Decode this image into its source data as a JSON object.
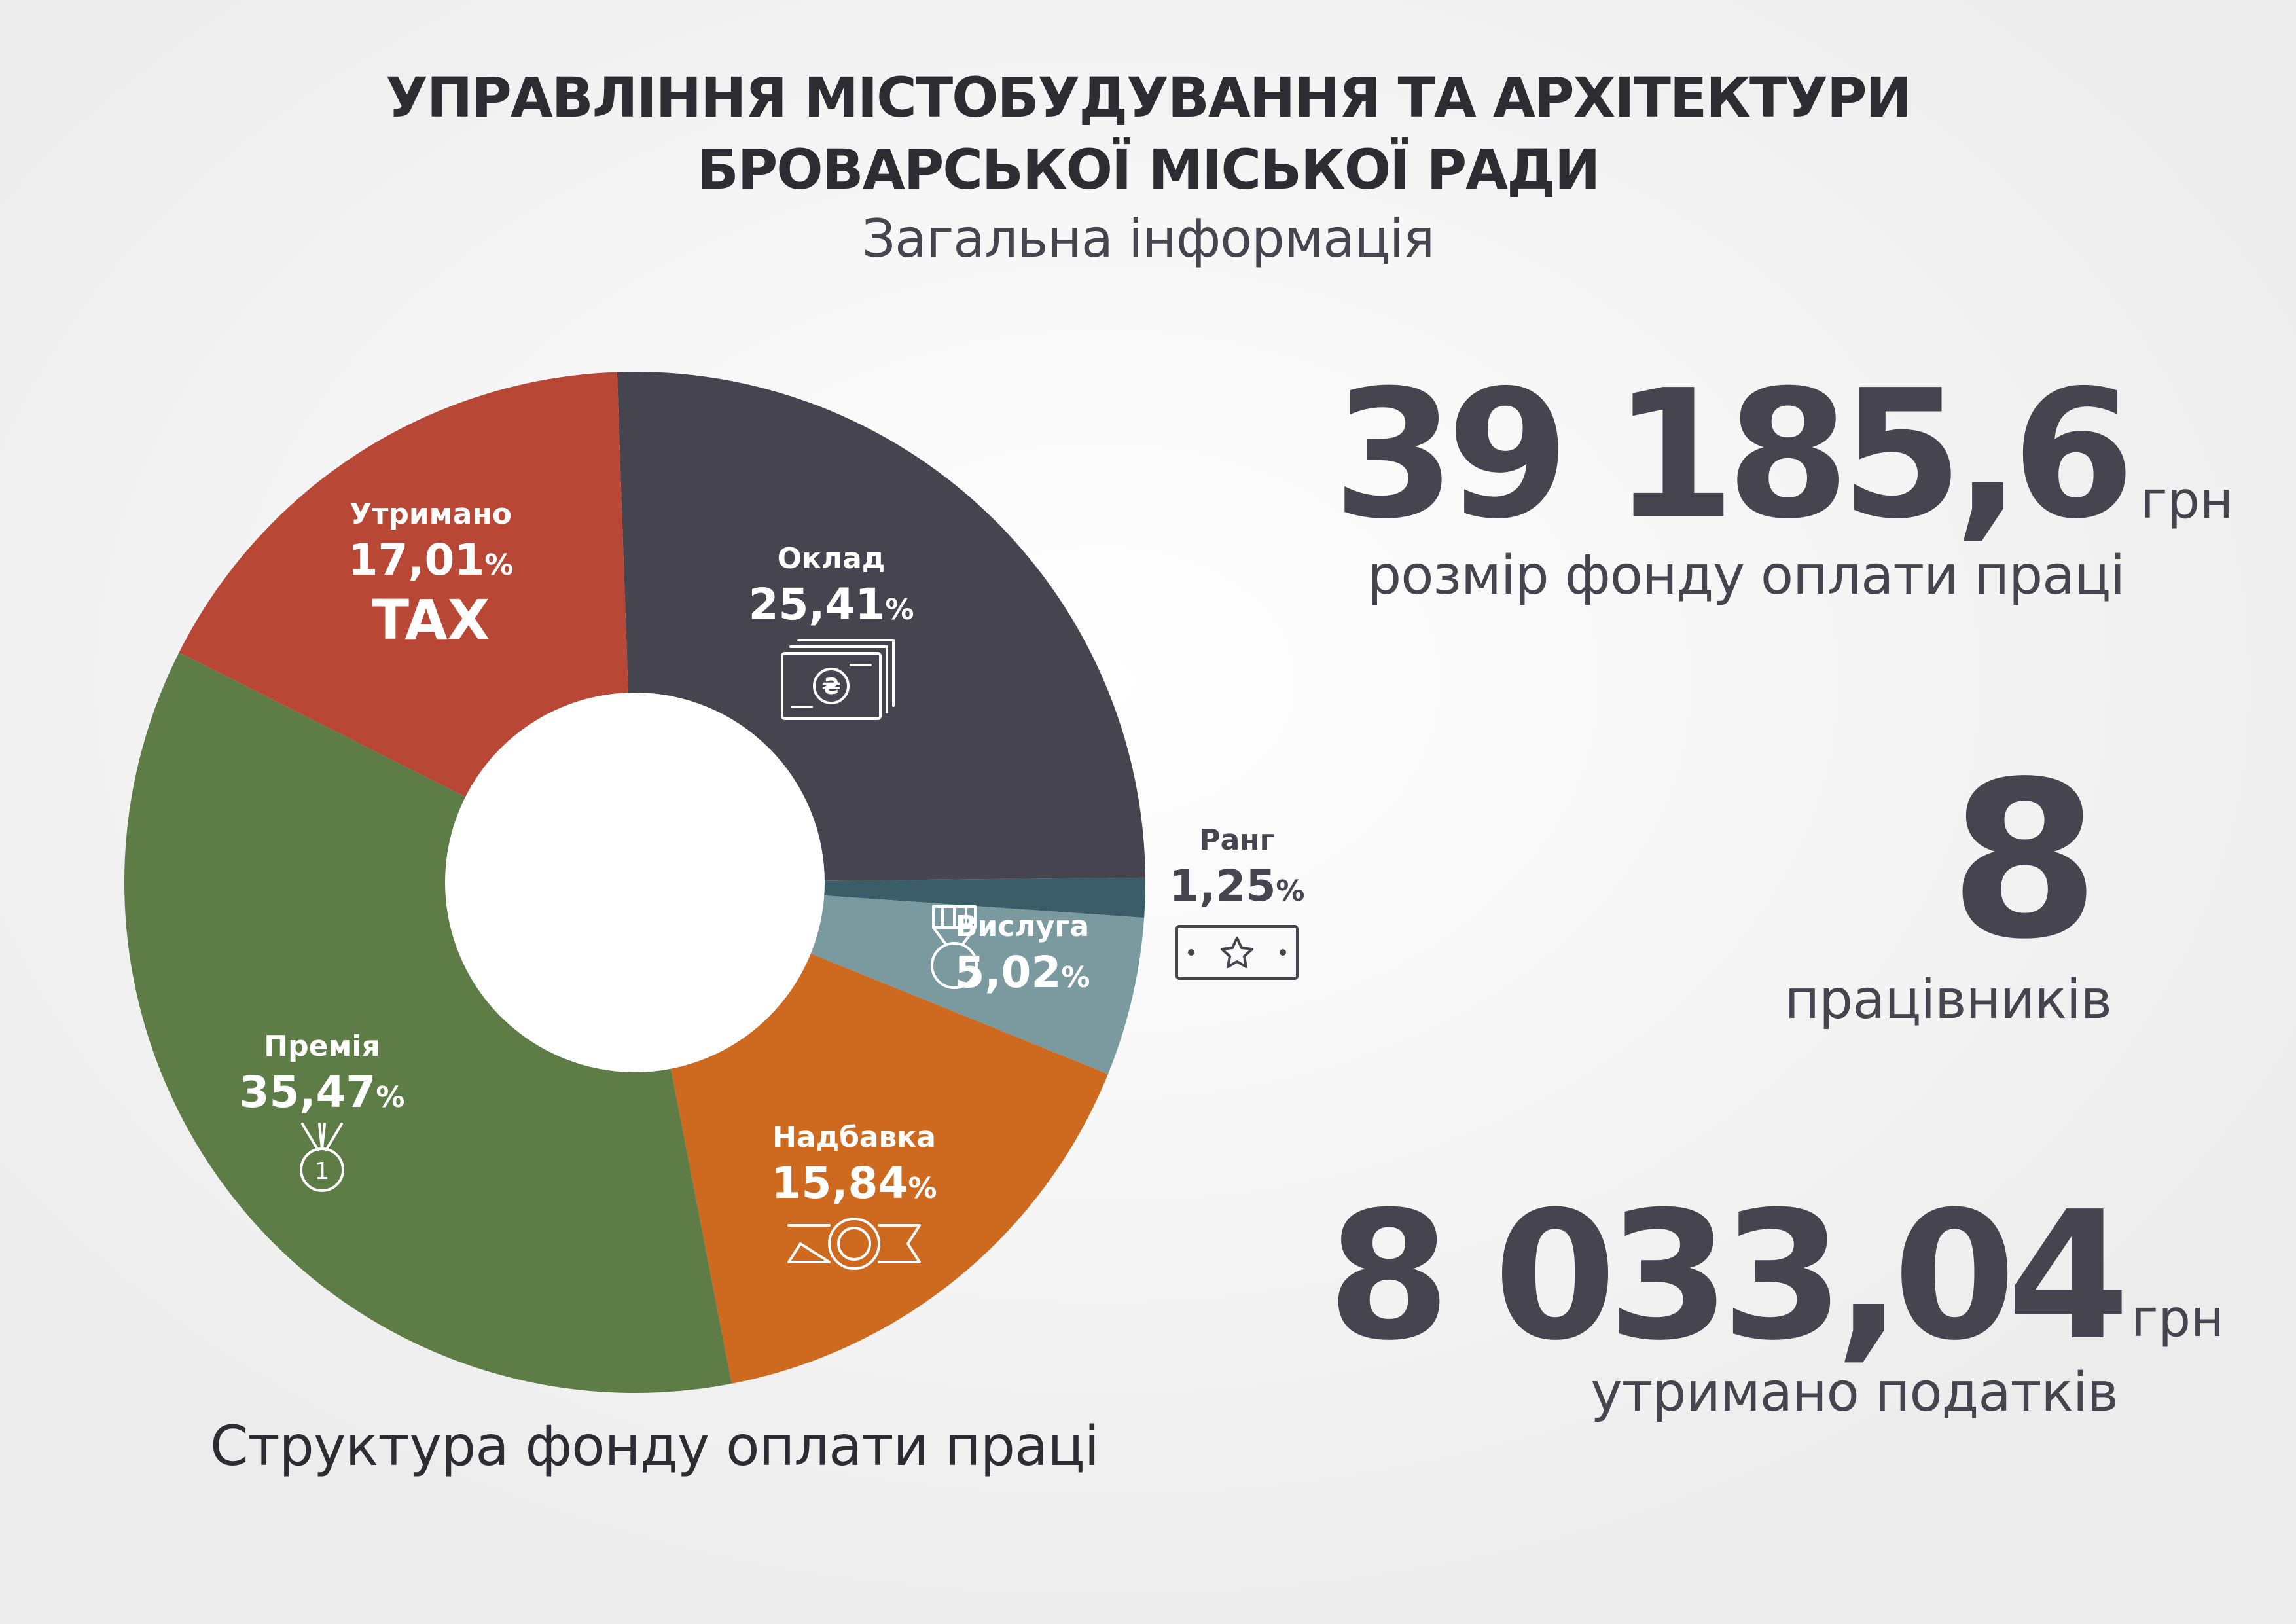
{
  "header": {
    "title_line1": "УПРАВЛІННЯ МІСТОБУДУВАННЯ ТА АРХІТЕКТУРИ",
    "title_line2": "БРОВАРСЬКОЇ МІСЬКОЇ РАДИ",
    "subtitle": "Загальна інформація"
  },
  "chart_data": {
    "type": "pie",
    "donut": true,
    "caption": "Структура фонду оплати праці",
    "percent_sign": "%",
    "slices": [
      {
        "name": "Оклад",
        "value": 25.41,
        "value_label": "25,41",
        "color": "#45444f",
        "label_color": "#ffffff",
        "icon": "banknote-icon"
      },
      {
        "name": "Ранг",
        "value": 1.25,
        "value_label": "1,25",
        "color": "#3b5d68",
        "label_color": "#45444f",
        "icon": "rank-star-icon"
      },
      {
        "name": "Вислуга",
        "value": 5.02,
        "value_label": "5,02",
        "color": "#7a9aa0",
        "label_color": "#ffffff",
        "icon": "medal-icon"
      },
      {
        "name": "Надбавка",
        "value": 15.84,
        "value_label": "15,84",
        "color": "#cd6a20",
        "label_color": "#ffffff",
        "icon": "ribbon-badge-icon"
      },
      {
        "name": "Премія",
        "value": 35.47,
        "value_label": "35,47",
        "color": "#5e7c45",
        "label_color": "#ffffff",
        "icon": "first-place-medal-icon"
      },
      {
        "name": "Утримано",
        "value": 17.01,
        "value_label": "17,01",
        "extra": "TAX",
        "color": "#b94735",
        "label_color": "#ffffff",
        "icon": ""
      }
    ]
  },
  "stats": {
    "fund": {
      "value": "39 185,6",
      "unit": "грн",
      "description": "розмір фонду оплати праці"
    },
    "workers": {
      "value": "8",
      "description": "працівників"
    },
    "taxes": {
      "value": "8 033,04",
      "unit": "грн",
      "description": "утримано податків"
    }
  }
}
